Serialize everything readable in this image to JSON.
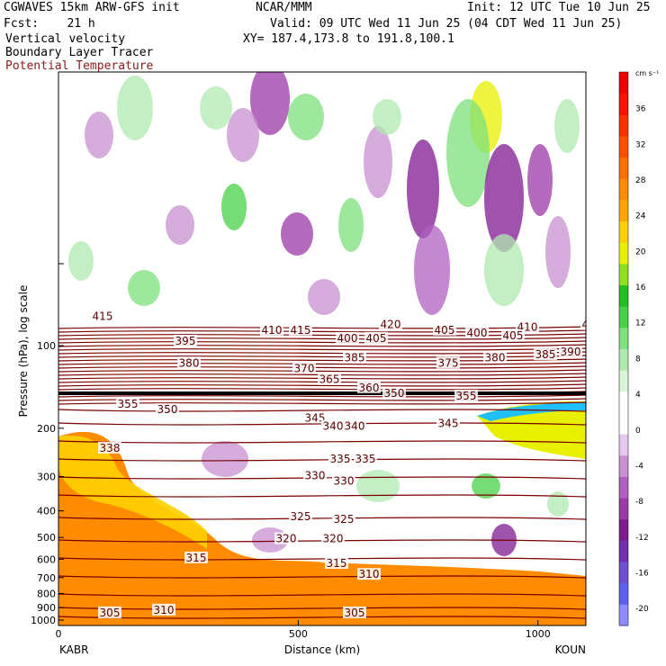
{
  "header": {
    "model": "CGWAVES 15km ARW-GFS init",
    "org": "NCAR/MMM",
    "init": "Init: 12 UTC Tue 10 Jun 25",
    "fcst": "Fcst:    21 h",
    "valid": "Valid: 09 UTC Wed 11 Jun 25 (04 CDT Wed 11 Jun 25)",
    "field1": "Vertical velocity",
    "field2": "Boundary Layer Tracer",
    "field3": "Potential Temperature",
    "xy": "XY= 187.4,173.8 to 191.8,100.1"
  },
  "chart_data": {
    "type": "heatmap",
    "xlabel": "Distance (km)",
    "ylabel": "Pressure (hPa), log scale",
    "x_ticks": [
      0,
      500,
      1000
    ],
    "xlim": [
      0,
      1100
    ],
    "y_ticks": [
      100,
      200,
      300,
      400,
      500,
      600,
      700,
      800,
      900,
      1000
    ],
    "y_scale": "log",
    "endpoint_labels": [
      "KABR",
      "KOUN"
    ],
    "colorbar": {
      "unit": "cm s⁻¹",
      "tick_labels": [
        -20,
        -16,
        -12,
        -8,
        -4,
        0,
        4,
        8,
        12,
        16,
        20,
        24,
        28,
        32,
        36
      ],
      "colors": [
        "#8c8cff",
        "#6060ee",
        "#7050d0",
        "#7030b0",
        "#801a90",
        "#9b3aa8",
        "#b060c0",
        "#c890d0",
        "#e8c8ee",
        "#ffffff",
        "#ffffff",
        "#d8f5d8",
        "#b0eab0",
        "#7ee07e",
        "#48d048",
        "#20c020",
        "#90e020",
        "#e8f000",
        "#ffd000",
        "#ffa500",
        "#ff8c00",
        "#ff7000",
        "#ff5000",
        "#ff3000",
        "#ff1000",
        "#f00000"
      ]
    },
    "contour_labels": [
      {
        "v": "415",
        "x": 0.12,
        "y": 1.9
      },
      {
        "v": "410",
        "x": 0.59,
        "y": 1.95
      },
      {
        "v": "415",
        "x": 0.67,
        "y": 1.95
      },
      {
        "v": "420",
        "x": 0.92,
        "y": 1.93
      },
      {
        "v": "405",
        "x": 1.07,
        "y": 1.95
      },
      {
        "v": "400",
        "x": 1.16,
        "y": 1.96
      },
      {
        "v": "410",
        "x": 1.3,
        "y": 1.94
      },
      {
        "v": "415",
        "x": 1.48,
        "y": 1.93
      },
      {
        "v": "395",
        "x": 0.35,
        "y": 1.99
      },
      {
        "v": "400",
        "x": 0.8,
        "y": 1.98
      },
      {
        "v": "405",
        "x": 0.88,
        "y": 1.98
      },
      {
        "v": "405",
        "x": 1.26,
        "y": 1.97
      },
      {
        "v": "390",
        "x": 1.53,
        "y": 1.99
      },
      {
        "v": "380",
        "x": 0.36,
        "y": 2.07
      },
      {
        "v": "385",
        "x": 0.82,
        "y": 2.05
      },
      {
        "v": "375",
        "x": 1.08,
        "y": 2.07
      },
      {
        "v": "390",
        "x": 1.42,
        "y": 2.03
      },
      {
        "v": "370",
        "x": 0.68,
        "y": 2.09
      },
      {
        "v": "380",
        "x": 1.21,
        "y": 2.05
      },
      {
        "v": "385",
        "x": 1.35,
        "y": 2.04
      },
      {
        "v": "365",
        "x": 0.75,
        "y": 2.13
      },
      {
        "v": "350",
        "x": 0.93,
        "y": 2.18
      },
      {
        "v": "360",
        "x": 0.86,
        "y": 2.16
      },
      {
        "v": "355",
        "x": 1.13,
        "y": 2.19
      },
      {
        "v": "355",
        "x": 0.19,
        "y": 2.22
      },
      {
        "v": "350",
        "x": 0.3,
        "y": 2.24
      },
      {
        "v": "360",
        "x": 1.5,
        "y": 2.17
      },
      {
        "v": "345",
        "x": 0.71,
        "y": 2.27
      },
      {
        "v": "340",
        "x": 0.76,
        "y": 2.3
      },
      {
        "v": "345",
        "x": 1.08,
        "y": 2.29
      },
      {
        "v": "340",
        "x": 0.82,
        "y": 2.3
      },
      {
        "v": "338",
        "x": 0.14,
        "y": 2.38
      },
      {
        "v": "335",
        "x": 0.78,
        "y": 2.42
      },
      {
        "v": "335",
        "x": 0.85,
        "y": 2.42
      },
      {
        "v": "330",
        "x": 0.71,
        "y": 2.48
      },
      {
        "v": "330",
        "x": 0.79,
        "y": 2.5
      },
      {
        "v": "325",
        "x": 0.67,
        "y": 2.63
      },
      {
        "v": "325",
        "x": 0.79,
        "y": 2.64
      },
      {
        "v": "320",
        "x": 0.63,
        "y": 2.71
      },
      {
        "v": "320",
        "x": 0.76,
        "y": 2.71
      },
      {
        "v": "315",
        "x": 0.38,
        "y": 2.78
      },
      {
        "v": "315",
        "x": 0.77,
        "y": 2.8
      },
      {
        "v": "310",
        "x": 0.86,
        "y": 2.84
      },
      {
        "v": "305",
        "x": 0.14,
        "y": 2.98
      },
      {
        "v": "310",
        "x": 0.29,
        "y": 2.97
      },
      {
        "v": "305",
        "x": 0.82,
        "y": 2.98
      }
    ]
  }
}
